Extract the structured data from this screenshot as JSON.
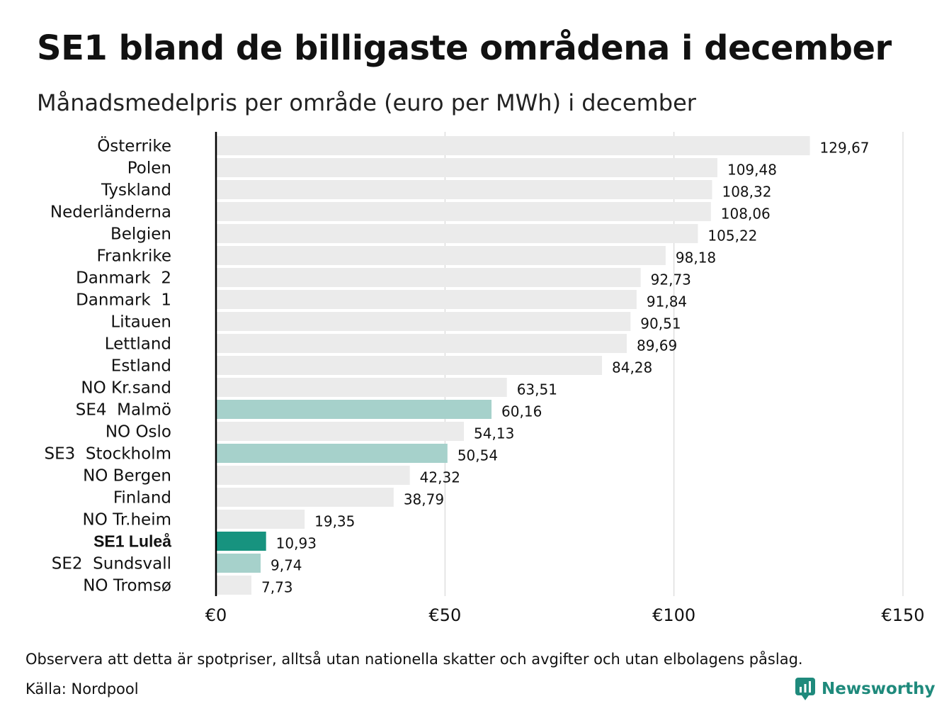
{
  "title": "SE1 bland de billigaste områdena i december",
  "subtitle": "Månadsmedelpris per område (euro per MWh) i december",
  "note": "Observera att detta är spotpriser, alltså utan nationella skatter och avgifter och utan elbolagens påslag.",
  "source": "Källa: Nordpool",
  "brand": {
    "name": "Newsworthy",
    "color": "#1f8a7c",
    "icon": "newsworthy-logo-icon"
  },
  "colors": {
    "default_bar": "#ebebeb",
    "swedish_bar": "#a6d1cb",
    "highlight_bar": "#17937f",
    "grid": "#d0d0d0",
    "axis": "#000000"
  },
  "chart_data": {
    "type": "bar",
    "orientation": "horizontal",
    "categories": [
      "Österrike",
      "Polen",
      "Tyskland",
      "Nederländerna",
      "Belgien",
      "Frankrike",
      "Danmark  2",
      "Danmark  1",
      "Litauen",
      "Lettland",
      "Estland",
      "NO Kr.sand",
      "SE4  Malmö",
      "NO Oslo",
      "SE3  Stockholm",
      "NO Bergen",
      "Finland",
      "NO Tr.heim",
      "SE1 Luleå",
      "SE2  Sundsvall",
      "NO Tromsø"
    ],
    "values": [
      129.67,
      109.48,
      108.32,
      108.06,
      105.22,
      98.18,
      92.73,
      91.84,
      90.51,
      89.69,
      84.28,
      63.51,
      60.16,
      54.13,
      50.54,
      42.32,
      38.79,
      19.35,
      10.93,
      9.74,
      7.73
    ],
    "value_labels": [
      "129,67",
      "109,48",
      "108,32",
      "108,06",
      "105,22",
      "98,18",
      "92,73",
      "91,84",
      "90,51",
      "89,69",
      "84,28",
      "63,51",
      "60,16",
      "54,13",
      "50,54",
      "42,32",
      "38,79",
      "19,35",
      "10,93",
      "9,74",
      "7,73"
    ],
    "bar_style": [
      "default",
      "default",
      "default",
      "default",
      "default",
      "default",
      "default",
      "default",
      "default",
      "default",
      "default",
      "default",
      "swedish",
      "default",
      "swedish",
      "default",
      "default",
      "default",
      "highlight",
      "swedish",
      "default"
    ],
    "x_ticks": [
      0,
      50,
      100,
      150
    ],
    "x_tick_labels": [
      "€0",
      "€50",
      "€100",
      "€150"
    ],
    "xlim": [
      0,
      150
    ],
    "grid": true,
    "legend": false
  }
}
